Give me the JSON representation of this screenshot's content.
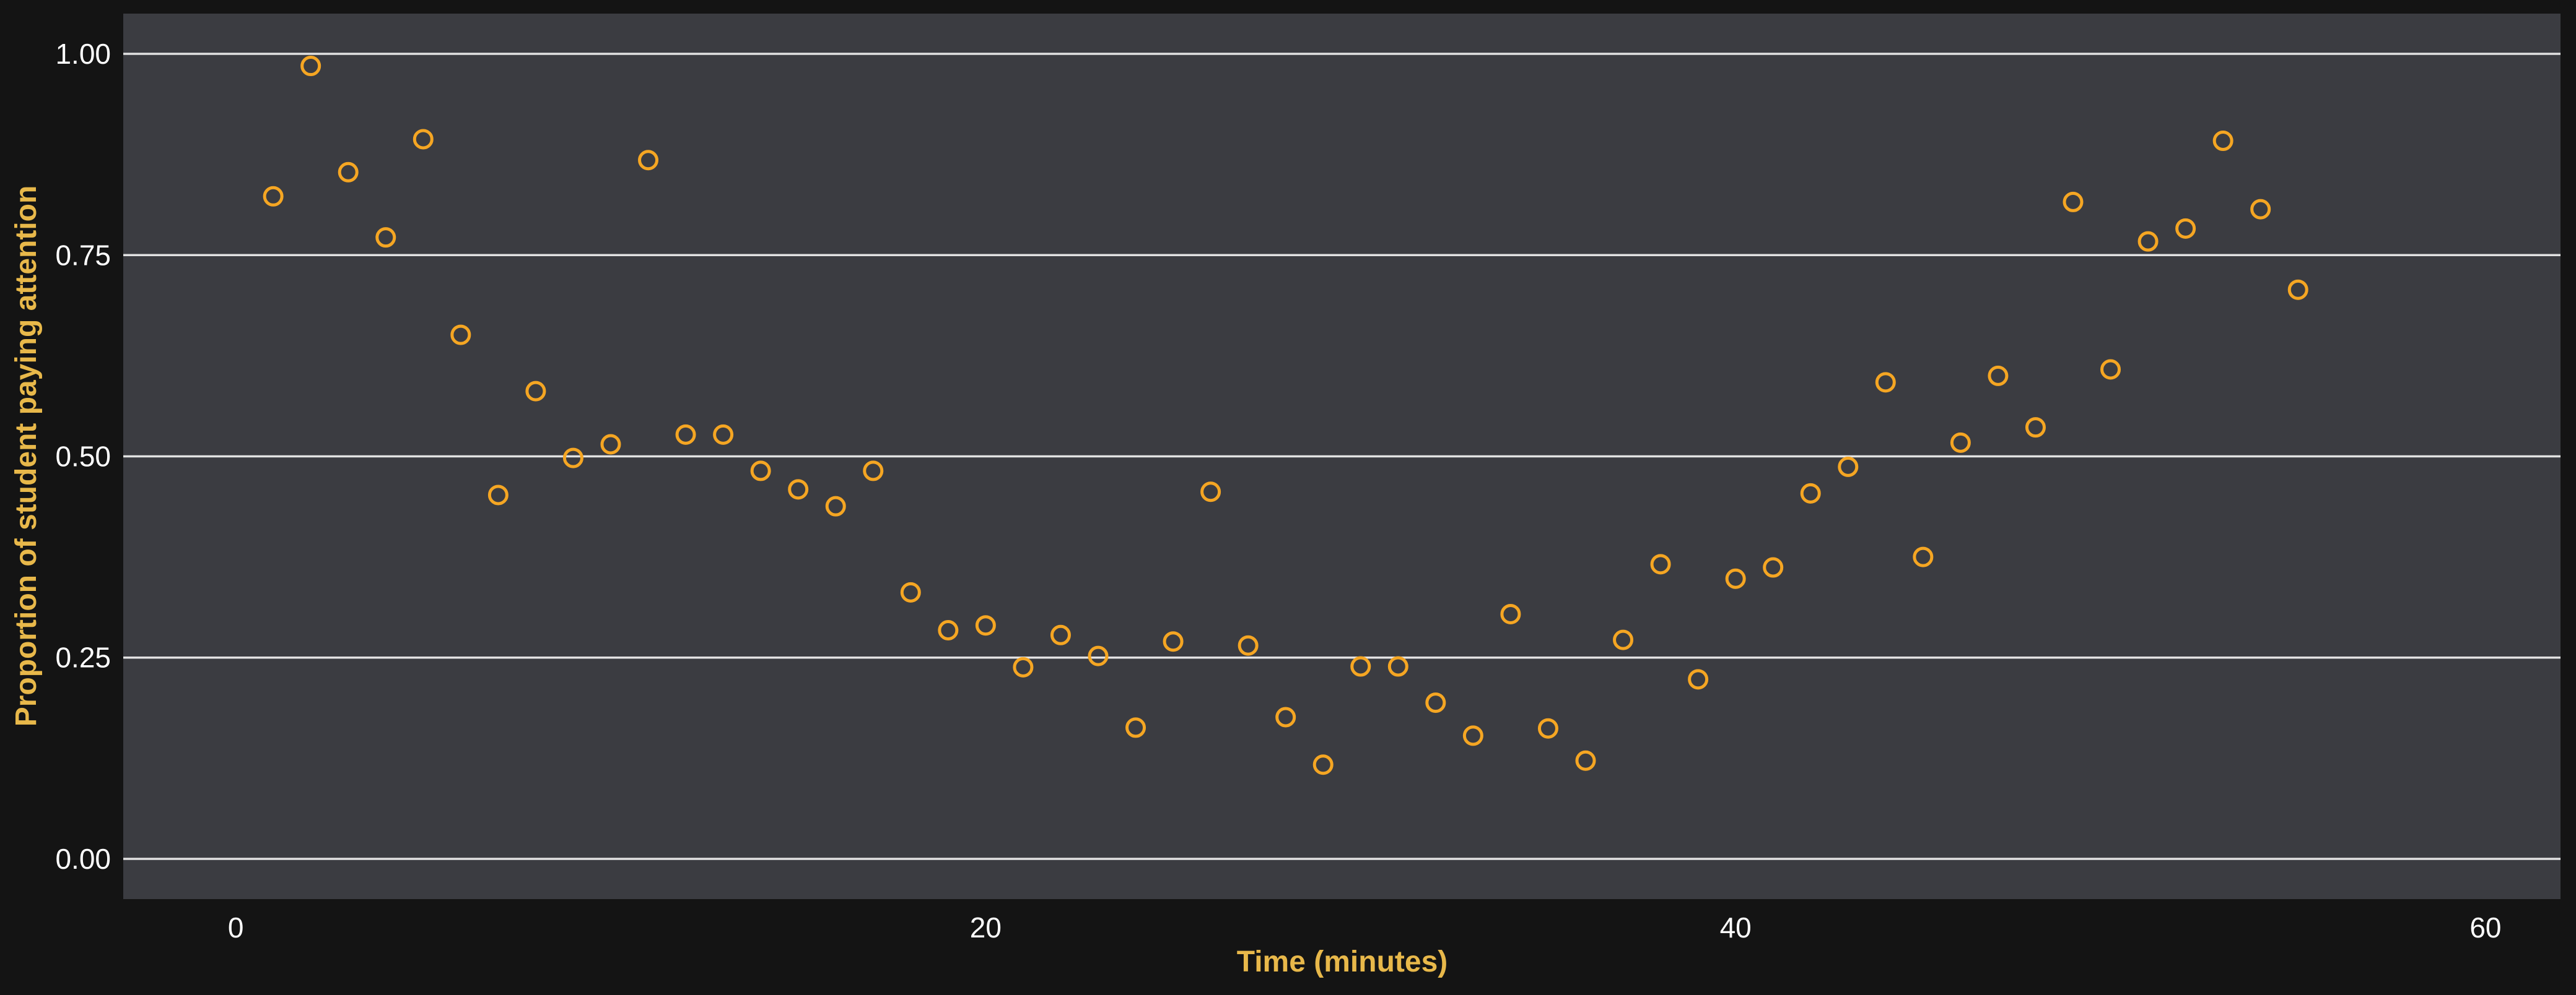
{
  "chart_data": {
    "type": "scatter",
    "title": "",
    "xlabel": "Time (minutes)",
    "ylabel": "Proportion of student paying attention",
    "xlim": [
      -3,
      62
    ],
    "ylim": [
      -0.05,
      1.05
    ],
    "x_ticks": [
      0,
      20,
      40,
      60
    ],
    "y_ticks": [
      0.0,
      0.25,
      0.5,
      0.75,
      1.0
    ],
    "x_tick_labels": [
      "0",
      "20",
      "40",
      "60"
    ],
    "y_tick_labels": [
      "0.00",
      "0.25",
      "0.50",
      "0.75",
      "1.00"
    ],
    "grid": "horizontal",
    "legend": "none",
    "colors": {
      "background": "#141414",
      "panel": "#3b3c41",
      "grid": "#e2e2e2",
      "point": "#f5a623",
      "axis_title": "#e8b84a",
      "tick_text": "#ffffff"
    },
    "series": [
      {
        "x": [
          1,
          2,
          3,
          4,
          5,
          6,
          7,
          8,
          9,
          10,
          11,
          12,
          13,
          14,
          15,
          16,
          17,
          18,
          19,
          20,
          21,
          22,
          23,
          24,
          25,
          26,
          27,
          28,
          29,
          30,
          31,
          32,
          33,
          34,
          35,
          36,
          37,
          38,
          39,
          40,
          41,
          42,
          43,
          44,
          45,
          46,
          47,
          48,
          49,
          50,
          51,
          52,
          53,
          54,
          55
        ],
        "y": [
          0.823,
          0.985,
          0.853,
          0.772,
          0.894,
          0.651,
          0.452,
          0.581,
          0.498,
          0.515,
          0.868,
          0.527,
          0.527,
          0.482,
          0.459,
          0.438,
          0.482,
          0.331,
          0.284,
          0.29,
          0.238,
          0.278,
          0.252,
          0.163,
          0.27,
          0.456,
          0.265,
          0.176,
          0.117,
          0.239,
          0.239,
          0.194,
          0.153,
          0.304,
          0.162,
          0.122,
          0.272,
          0.366,
          0.223,
          0.348,
          0.362,
          0.454,
          0.487,
          0.592,
          0.375,
          0.517,
          0.6,
          0.536,
          0.816,
          0.608,
          0.767,
          0.783,
          0.892,
          0.807,
          0.707
        ]
      }
    ]
  }
}
